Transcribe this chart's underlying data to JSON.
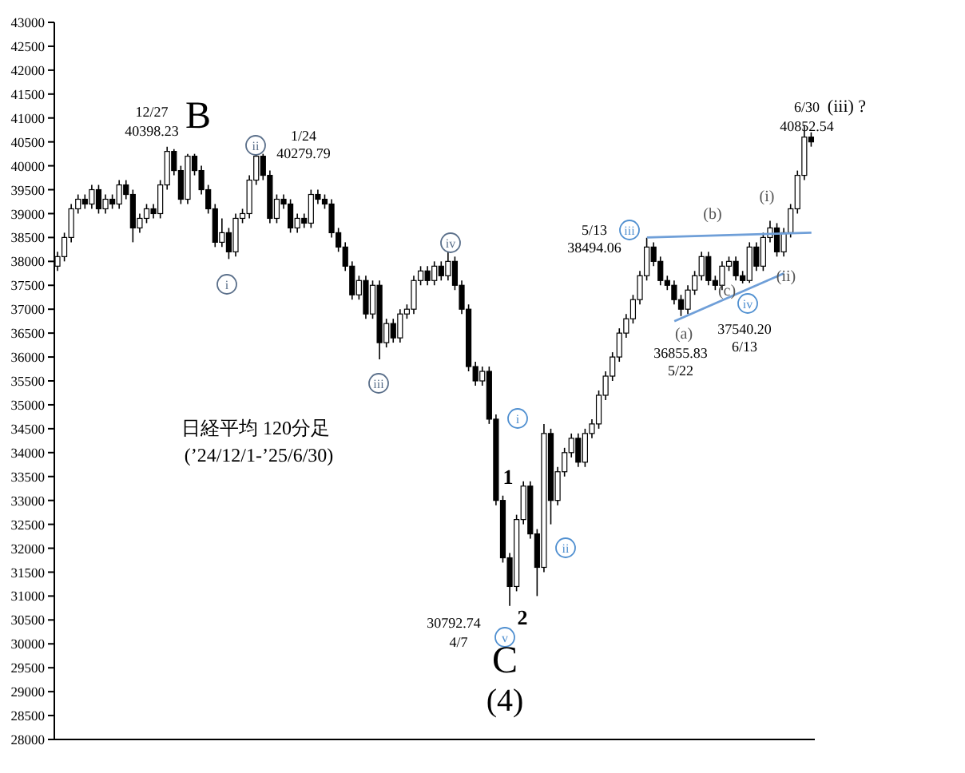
{
  "chart_data": {
    "type": "candlestick",
    "categories": [
      null,
      null,
      null,
      null,
      null,
      null,
      null,
      null,
      null,
      null,
      null,
      null,
      null,
      null,
      null,
      null,
      null,
      null,
      null,
      null,
      null,
      null,
      null,
      null,
      null,
      null,
      null,
      null,
      null,
      null,
      null,
      null,
      null,
      null,
      null,
      null,
      null,
      null,
      null,
      null,
      null,
      null,
      null,
      null,
      null,
      null,
      null,
      null,
      null,
      null,
      null,
      null,
      null,
      null,
      null,
      null,
      null,
      null,
      null,
      null,
      null,
      null,
      null,
      null,
      null,
      null,
      null,
      null,
      null,
      null,
      null,
      null,
      null,
      null,
      null,
      null,
      null,
      null,
      null,
      null,
      null,
      null,
      null,
      null,
      null,
      null,
      null,
      null,
      null,
      null,
      null,
      null,
      null,
      null,
      null,
      null,
      null,
      null,
      null,
      null,
      null,
      null,
      null,
      null,
      null,
      null,
      null,
      null,
      null,
      null,
      null
    ],
    "ohlc": [
      [
        37900,
        38200,
        37800,
        38100
      ],
      [
        38100,
        38600,
        38000,
        38500
      ],
      [
        38500,
        39200,
        38400,
        39100
      ],
      [
        39100,
        39400,
        39000,
        39300
      ],
      [
        39300,
        39400,
        39100,
        39200
      ],
      [
        39200,
        39600,
        39100,
        39500
      ],
      [
        39500,
        39600,
        39000,
        39100
      ],
      [
        39100,
        39400,
        39000,
        39300
      ],
      [
        39300,
        39400,
        39100,
        39200
      ],
      [
        39200,
        39700,
        39100,
        39600
      ],
      [
        39600,
        39700,
        39300,
        39400
      ],
      [
        39400,
        39500,
        38400,
        38700
      ],
      [
        38700,
        39000,
        38600,
        38900
      ],
      [
        38900,
        39200,
        38800,
        39100
      ],
      [
        39100,
        39200,
        38900,
        39000
      ],
      [
        39000,
        39700,
        38900,
        39600
      ],
      [
        39600,
        40398.23,
        39500,
        40300
      ],
      [
        40300,
        40350,
        39800,
        39900
      ],
      [
        39900,
        40000,
        39200,
        39300
      ],
      [
        39300,
        40250,
        39200,
        40200
      ],
      [
        40200,
        40250,
        39800,
        39900
      ],
      [
        39900,
        40000,
        39400,
        39500
      ],
      [
        39500,
        39600,
        39000,
        39100
      ],
      [
        39100,
        39200,
        38300,
        38400
      ],
      [
        38400,
        38900,
        38300,
        38600
      ],
      [
        38600,
        38700,
        38050,
        38200
      ],
      [
        38200,
        39000,
        38100,
        38900
      ],
      [
        38900,
        39100,
        38800,
        39000
      ],
      [
        39000,
        39800,
        38900,
        39700
      ],
      [
        39700,
        40279.79,
        39600,
        40200
      ],
      [
        40200,
        40250,
        39700,
        39800
      ],
      [
        39800,
        39900,
        38800,
        38900
      ],
      [
        38900,
        39400,
        38800,
        39300
      ],
      [
        39300,
        39400,
        39100,
        39200
      ],
      [
        39200,
        39300,
        38600,
        38700
      ],
      [
        38700,
        39000,
        38600,
        38900
      ],
      [
        38900,
        39000,
        38700,
        38800
      ],
      [
        38800,
        39500,
        38700,
        39400
      ],
      [
        39400,
        39500,
        39200,
        39300
      ],
      [
        39300,
        39400,
        39100,
        39200
      ],
      [
        39200,
        39300,
        38500,
        38600
      ],
      [
        38600,
        38700,
        38200,
        38300
      ],
      [
        38300,
        38400,
        37800,
        37900
      ],
      [
        37900,
        38000,
        37200,
        37300
      ],
      [
        37300,
        37700,
        37200,
        37600
      ],
      [
        37600,
        37700,
        36800,
        36900
      ],
      [
        36900,
        37600,
        36800,
        37500
      ],
      [
        37500,
        37600,
        35950,
        36300
      ],
      [
        36300,
        36800,
        36200,
        36700
      ],
      [
        36700,
        36800,
        36300,
        36400
      ],
      [
        36400,
        37000,
        36300,
        36900
      ],
      [
        36900,
        37100,
        36800,
        37000
      ],
      [
        37000,
        37700,
        36900,
        37600
      ],
      [
        37600,
        37900,
        37500,
        37800
      ],
      [
        37800,
        37900,
        37500,
        37600
      ],
      [
        37600,
        38000,
        37500,
        37900
      ],
      [
        37900,
        38000,
        37600,
        37700
      ],
      [
        37700,
        38200,
        37600,
        38000
      ],
      [
        38000,
        38100,
        37400,
        37500
      ],
      [
        37500,
        37600,
        36900,
        37000
      ],
      [
        37000,
        37100,
        35700,
        35800
      ],
      [
        35800,
        35900,
        35400,
        35500
      ],
      [
        35500,
        35800,
        35400,
        35700
      ],
      [
        35700,
        35800,
        34600,
        34700
      ],
      [
        34700,
        34800,
        32900,
        33000
      ],
      [
        33000,
        33100,
        31700,
        31800
      ],
      [
        31800,
        31900,
        30792.74,
        31200
      ],
      [
        31200,
        32700,
        31100,
        32600
      ],
      [
        32600,
        33400,
        32500,
        33300
      ],
      [
        33300,
        33400,
        32200,
        32300
      ],
      [
        32300,
        32400,
        31000,
        31600
      ],
      [
        31600,
        34600,
        31500,
        34400
      ],
      [
        34400,
        34500,
        32500,
        33000
      ],
      [
        33000,
        33700,
        32900,
        33600
      ],
      [
        33600,
        34100,
        33500,
        34000
      ],
      [
        34000,
        34400,
        33900,
        34300
      ],
      [
        34300,
        34400,
        33700,
        33800
      ],
      [
        33800,
        34500,
        33700,
        34400
      ],
      [
        34400,
        34700,
        34300,
        34600
      ],
      [
        34600,
        35300,
        34500,
        35200
      ],
      [
        35200,
        35700,
        35100,
        35600
      ],
      [
        35600,
        36100,
        35500,
        36000
      ],
      [
        36000,
        36600,
        35900,
        36500
      ],
      [
        36500,
        36900,
        36400,
        36800
      ],
      [
        36800,
        37300,
        36700,
        37200
      ],
      [
        37200,
        37800,
        37100,
        37700
      ],
      [
        37700,
        38494.06,
        37600,
        38300
      ],
      [
        38300,
        38400,
        37900,
        38000
      ],
      [
        38000,
        38100,
        37500,
        37600
      ],
      [
        37600,
        37700,
        37400,
        37500
      ],
      [
        37500,
        37600,
        37100,
        37200
      ],
      [
        37200,
        37300,
        36855.83,
        37000
      ],
      [
        37000,
        37500,
        36900,
        37400
      ],
      [
        37400,
        37800,
        37300,
        37700
      ],
      [
        37700,
        38200,
        37600,
        38100
      ],
      [
        38100,
        38200,
        37500,
        37600
      ],
      [
        37600,
        37700,
        37400,
        37500
      ],
      [
        37500,
        38000,
        37400,
        37900
      ],
      [
        37900,
        38100,
        37800,
        38000
      ],
      [
        38000,
        38100,
        37600,
        37700
      ],
      [
        37700,
        37800,
        37540.2,
        37600
      ],
      [
        37600,
        38400,
        37550,
        38300
      ],
      [
        38300,
        38400,
        37800,
        37900
      ],
      [
        37900,
        38600,
        37800,
        38500
      ],
      [
        38500,
        38850,
        38400,
        38700
      ],
      [
        38700,
        38800,
        38100,
        38200
      ],
      [
        38200,
        38700,
        38100,
        38600
      ],
      [
        38600,
        39200,
        38500,
        39100
      ],
      [
        39100,
        39900,
        39000,
        39800
      ],
      [
        39800,
        40852.54,
        39700,
        40600
      ],
      [
        40600,
        40700,
        40400,
        40500
      ]
    ],
    "series": [
      {
        "type": "line",
        "color": "#6f9fd8",
        "values": [
          null,
          null,
          null,
          null,
          null,
          null,
          null,
          null,
          null,
          null,
          null,
          null,
          null,
          null,
          null,
          null,
          null,
          null,
          null,
          null,
          null,
          null,
          null,
          null,
          null,
          null,
          null,
          null,
          null,
          null,
          null,
          null,
          null,
          null,
          null,
          null,
          null,
          null,
          null,
          null,
          null,
          null,
          null,
          null,
          null,
          null,
          null,
          null,
          null,
          null,
          null,
          null,
          null,
          null,
          null,
          null,
          null,
          null,
          null,
          null,
          null,
          null,
          null,
          null,
          null,
          null,
          null,
          null,
          null,
          null,
          null,
          null,
          null,
          null,
          null,
          null,
          null,
          null,
          null,
          null,
          null,
          null,
          null,
          null,
          null,
          null,
          38500,
          null,
          null,
          null,
          null,
          null,
          null,
          null,
          null,
          null,
          null,
          null,
          null,
          null,
          null,
          null,
          null,
          null,
          null,
          null,
          null,
          null,
          null,
          null,
          38600
        ]
      },
      {
        "type": "line",
        "color": "#6f9fd8",
        "values": [
          null,
          null,
          null,
          null,
          null,
          null,
          null,
          null,
          null,
          null,
          null,
          null,
          null,
          null,
          null,
          null,
          null,
          null,
          null,
          null,
          null,
          null,
          null,
          null,
          null,
          null,
          null,
          null,
          null,
          null,
          null,
          null,
          null,
          null,
          null,
          null,
          null,
          null,
          null,
          null,
          null,
          null,
          null,
          null,
          null,
          null,
          null,
          null,
          null,
          null,
          null,
          null,
          null,
          null,
          null,
          null,
          null,
          null,
          null,
          null,
          null,
          null,
          null,
          null,
          null,
          null,
          null,
          null,
          null,
          null,
          null,
          null,
          null,
          null,
          null,
          null,
          null,
          null,
          null,
          null,
          null,
          null,
          null,
          null,
          null,
          null,
          null,
          null,
          null,
          null,
          36750,
          null,
          null,
          null,
          null,
          null,
          null,
          null,
          null,
          null,
          null,
          null,
          null,
          null,
          null,
          null,
          37750,
          null,
          null,
          null,
          null
        ]
      }
    ],
    "ylim": [
      28000,
      43000
    ],
    "yticks": [
      28000,
      28500,
      29000,
      29500,
      30000,
      30500,
      31000,
      31500,
      32000,
      32500,
      33000,
      33500,
      34000,
      34500,
      35000,
      35500,
      36000,
      36500,
      37000,
      37500,
      38000,
      38500,
      39000,
      39500,
      40000,
      40500,
      41000,
      41500,
      42000,
      42500,
      43000
    ],
    "grid": false,
    "legend": false,
    "annotations": [
      "12/27",
      "40398.23",
      "B",
      "i",
      "ii",
      "1/24",
      "40279.79",
      "iii",
      "iv",
      "日経平均 120分足",
      "(’24/12/1-’25/6/30)",
      "i",
      "1",
      "ii",
      "2",
      "30792.74",
      "4/7",
      "v",
      "C",
      "(4)",
      "5/13",
      "38494.06",
      "iii",
      "(a)",
      "36855.83",
      "5/22",
      "(b)",
      "(c)",
      "iv",
      "37540.20",
      "6/13",
      "(i)",
      "(ii)",
      "6/30",
      "40852.54",
      "(iii) ?"
    ]
  }
}
